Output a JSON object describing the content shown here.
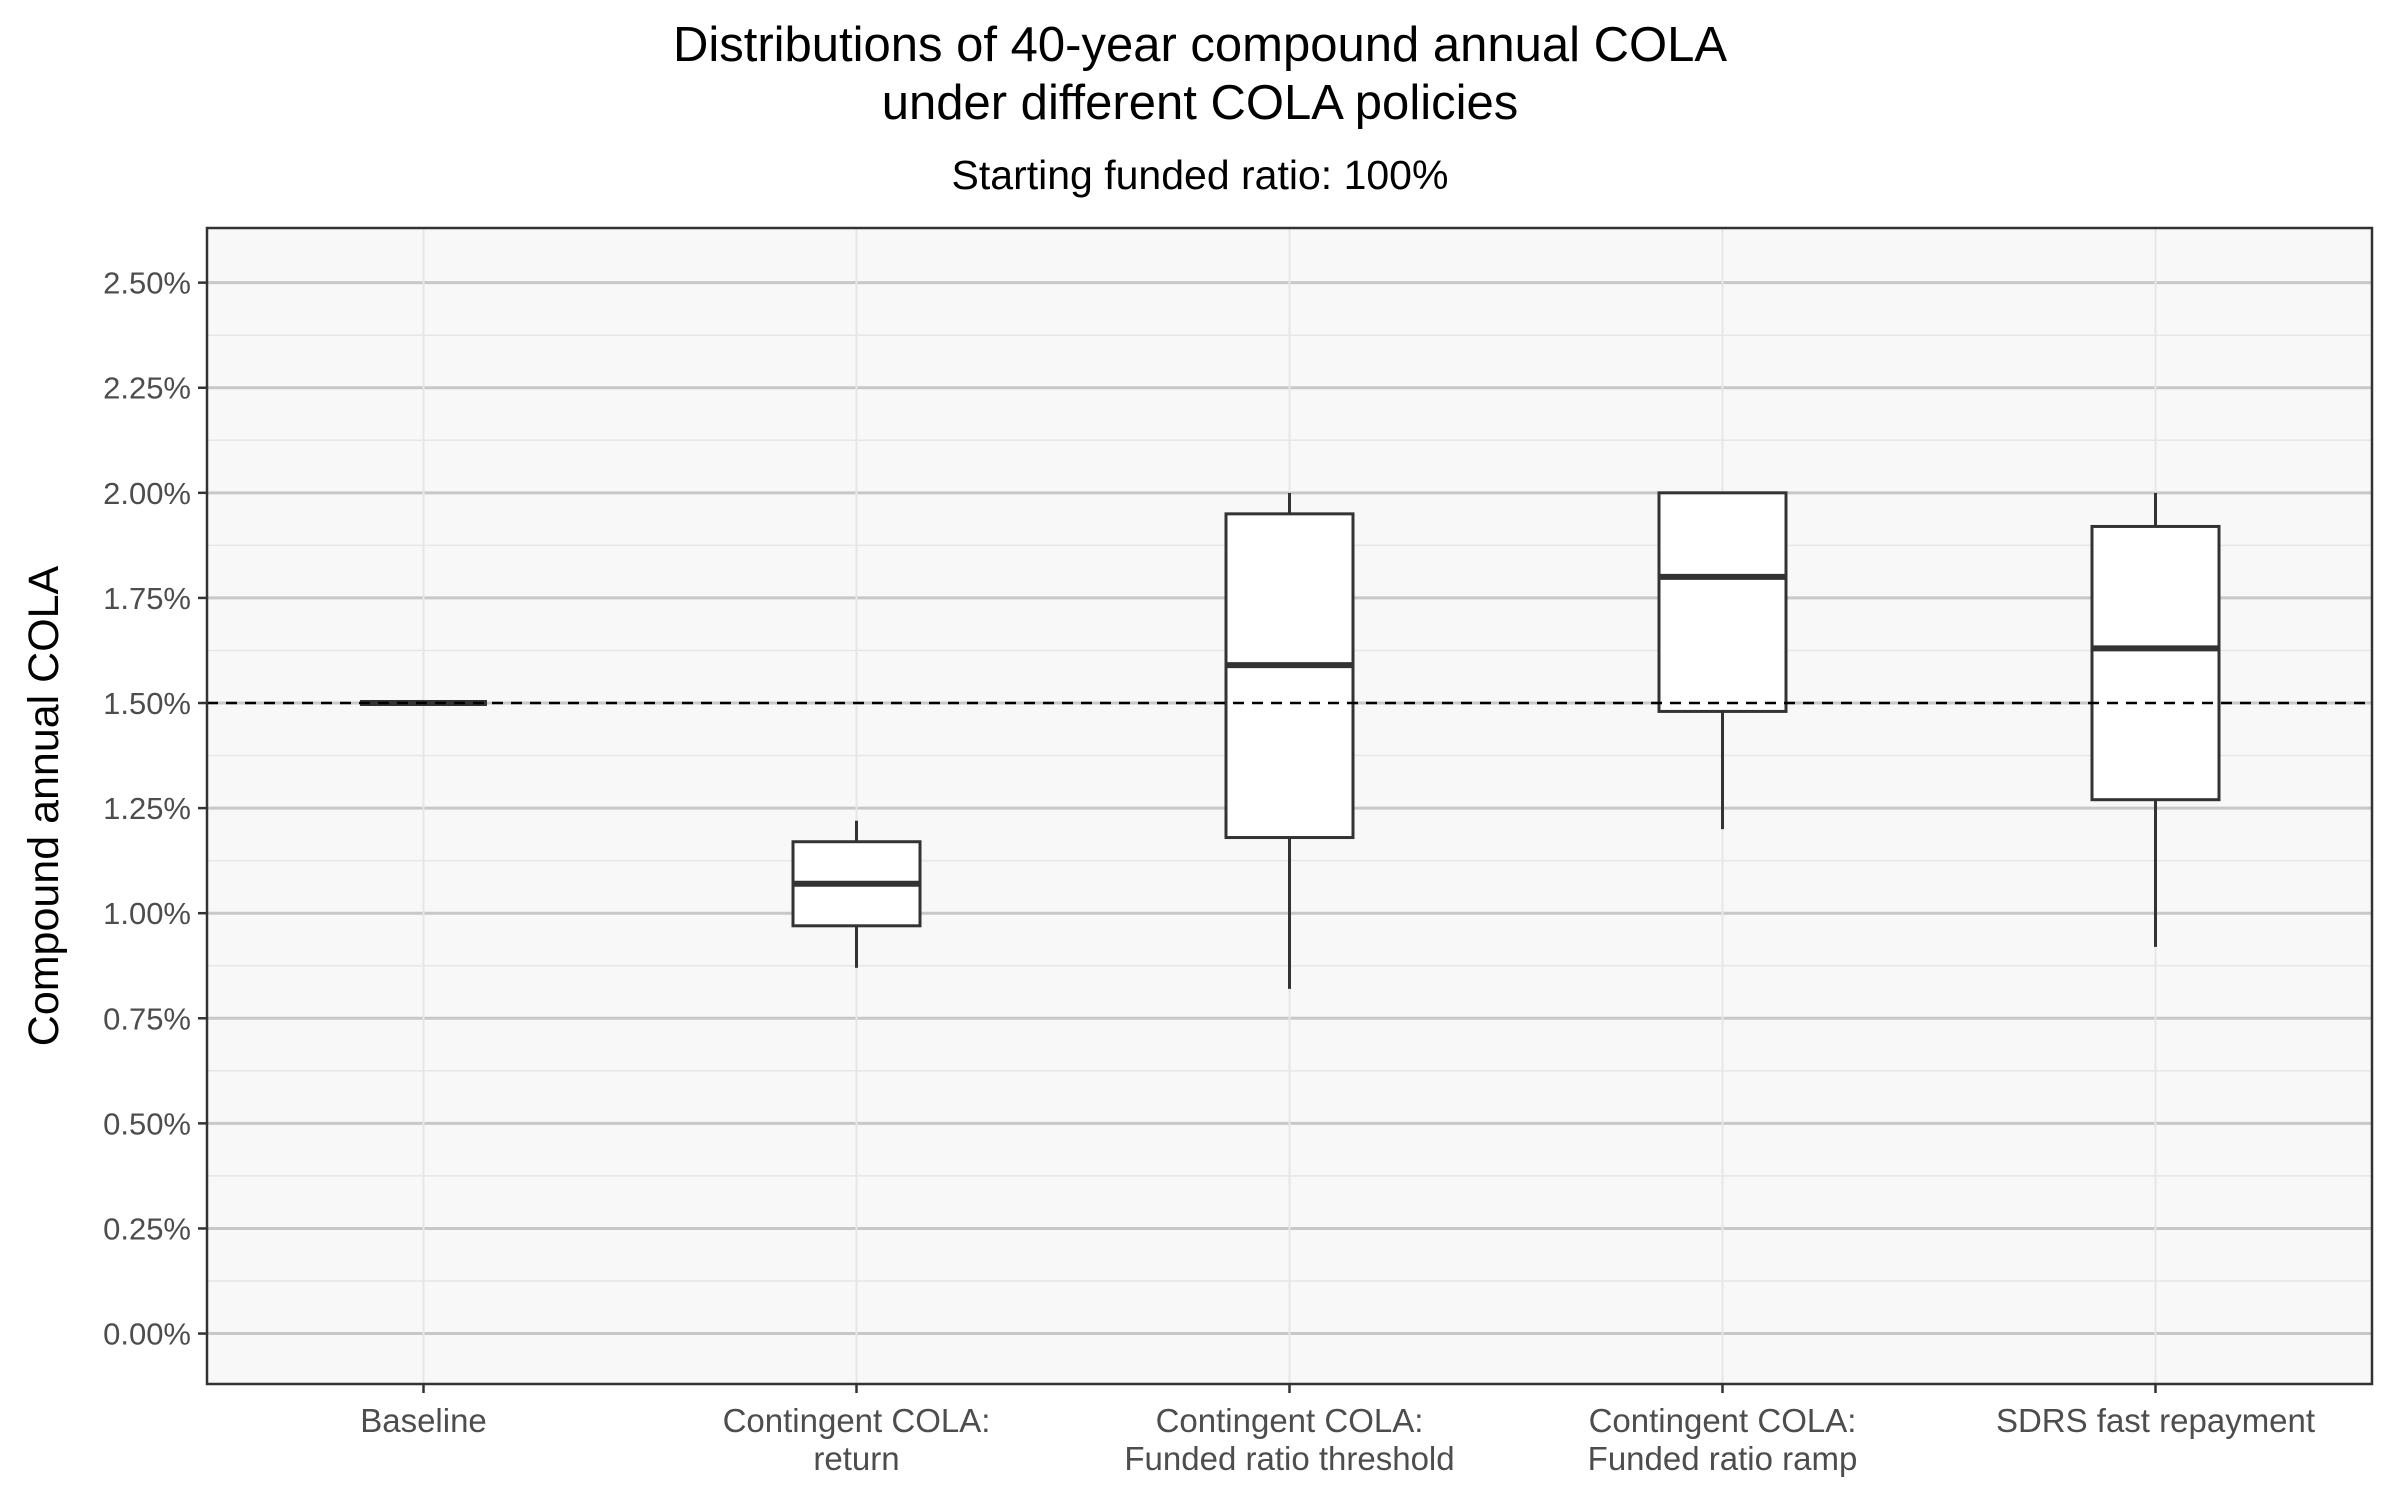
{
  "chart_data": {
    "type": "box",
    "title_lines": [
      "Distributions of 40-year compound annual COLA",
      "under different COLA policies"
    ],
    "subtitle": "Starting funded ratio: 100%",
    "ylabel": "Compound annual COLA",
    "xlabel": "",
    "ylim": [
      -0.12,
      2.63
    ],
    "yticks": [
      0.0,
      0.25,
      0.5,
      0.75,
      1.0,
      1.25,
      1.5,
      1.75,
      2.0,
      2.25,
      2.5
    ],
    "ytick_labels": [
      "0.00%",
      "0.25%",
      "0.50%",
      "0.75%",
      "1.00%",
      "1.25%",
      "1.50%",
      "1.75%",
      "2.00%",
      "2.25%",
      "2.50%"
    ],
    "reference_line": {
      "value": 1.5,
      "style": "dashed"
    },
    "grid": true,
    "categories": [
      {
        "lines": [
          "Baseline"
        ],
        "whisker_low": 1.5,
        "q1": 1.5,
        "median": 1.5,
        "q3": 1.5,
        "whisker_high": 1.5
      },
      {
        "lines": [
          "Contingent COLA:",
          "return"
        ],
        "whisker_low": 0.87,
        "q1": 0.97,
        "median": 1.07,
        "q3": 1.17,
        "whisker_high": 1.22
      },
      {
        "lines": [
          "Contingent COLA:",
          "Funded ratio threshold"
        ],
        "whisker_low": 0.82,
        "q1": 1.18,
        "median": 1.59,
        "q3": 1.95,
        "whisker_high": 2.0
      },
      {
        "lines": [
          "Contingent COLA:",
          "Funded ratio ramp"
        ],
        "whisker_low": 1.2,
        "q1": 1.48,
        "median": 1.8,
        "q3": 2.0,
        "whisker_high": 2.0
      },
      {
        "lines": [
          "SDRS fast repayment"
        ],
        "whisker_low": 0.92,
        "q1": 1.27,
        "median": 1.63,
        "q3": 1.92,
        "whisker_high": 2.0
      }
    ],
    "colors": {
      "panel_bg": "#f8f8f8",
      "grid_major": "#c8c8c8",
      "grid_minor": "#e6e6e6",
      "box_line": "#333333",
      "box_fill": "#ffffff"
    }
  }
}
